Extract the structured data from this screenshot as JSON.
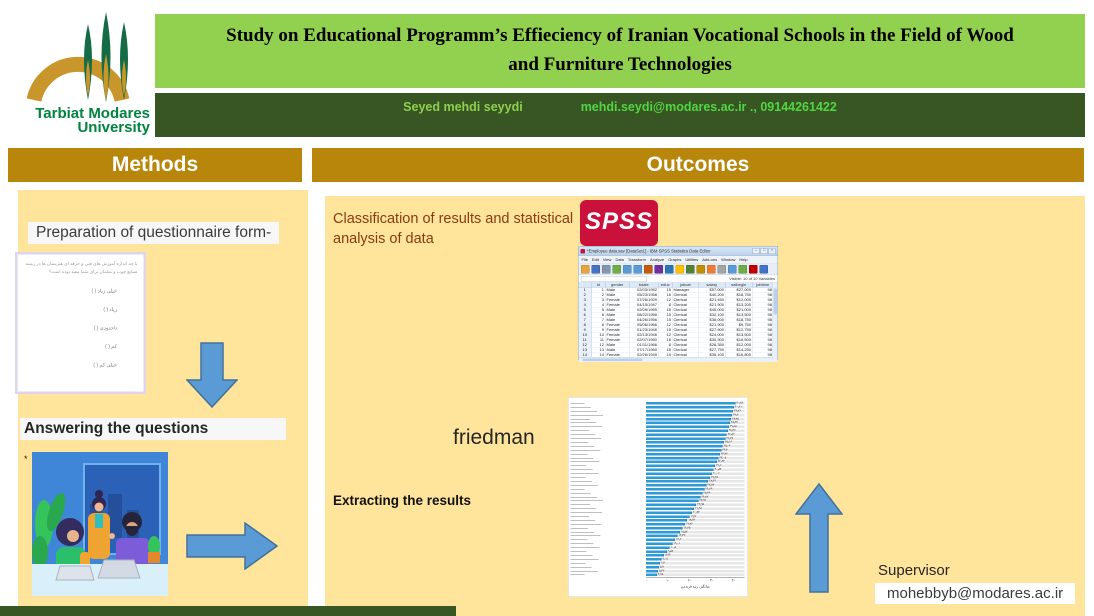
{
  "colors": {
    "title_band_green": "#92D04F",
    "author_band_green": "#375623",
    "section_gold": "#B8860B",
    "panel_yellow": "#FFE49B",
    "arrow_blue": "#5B9BD5",
    "arrow_border": "#41719C",
    "spss_red": "#C9113C",
    "bar_blue": "#2E9BD6"
  },
  "logo": {
    "line1": "Tarbiat Modares",
    "line2": "University"
  },
  "header": {
    "title": "Study on Educational Programm’s Effieciency of Iranian Vocational Schools in the Field of Wood and Furniture Technologies",
    "author": "Seyed mehdi seyydi",
    "email": "mehdi.seydi@modares.ac.ir",
    "separator": ".,",
    "phone": "09144261422"
  },
  "sections": {
    "methods": "Methods",
    "outcomes": "Outcomes"
  },
  "methods": {
    "step1": "Preparation of questionnaire form-",
    "questionnaire": {
      "question": "تا چه اندازه آموزش های فنی و حرفه ای هنرستان ها در زمینه صنایع چوب و مبلمان برای شما مفید بوده است؟",
      "options": [
        "خیلی زیاد",
        "زیاد",
        "تاحدودی",
        "کم",
        "خیلی کم"
      ]
    },
    "step2": "Answering the questions",
    "footnote_marker": "*"
  },
  "outcomes": {
    "step1": "Classification of results and statistical\nanalysis of data",
    "spss_logo_text": "SPSS",
    "friedman_label": "friedman",
    "step2": "Extracting the results",
    "supervisor_label": "Supervisor",
    "supervisor_email": "mohebbyb@modares.ac.ir"
  },
  "spss_window": {
    "title": "*Employee data.sav [DataSet1] - IBM SPSS Statistics Data Editor",
    "menus": [
      "File",
      "Edit",
      "View",
      "Data",
      "Transform",
      "Analyze",
      "Graphs",
      "Utilities",
      "Add-ons",
      "Window",
      "Help"
    ],
    "status": "Visible: 10 of 10 Variables",
    "toolbar_icons": [
      {
        "name": "open-data-icon",
        "color": "#E8A33D"
      },
      {
        "name": "save-icon",
        "color": "#4472C4"
      },
      {
        "name": "print-icon",
        "color": "#8496B0"
      },
      {
        "name": "recall-dialog-icon",
        "color": "#70AD47"
      },
      {
        "name": "undo-icon",
        "color": "#5B9BD5"
      },
      {
        "name": "redo-icon",
        "color": "#5B9BD5"
      },
      {
        "name": "goto-case-icon",
        "color": "#C55A11"
      },
      {
        "name": "goto-variable-icon",
        "color": "#7030A0"
      },
      {
        "name": "variables-icon",
        "color": "#2E75B6"
      },
      {
        "name": "find-icon",
        "color": "#FFC000"
      },
      {
        "name": "insert-cases-icon",
        "color": "#548235"
      },
      {
        "name": "insert-variable-icon",
        "color": "#BF9000"
      },
      {
        "name": "split-file-icon",
        "color": "#ED7D31"
      },
      {
        "name": "weight-cases-icon",
        "color": "#A5A5A5"
      },
      {
        "name": "select-cases-icon",
        "color": "#5B9BD5"
      },
      {
        "name": "value-labels-icon",
        "color": "#70AD47"
      },
      {
        "name": "use-variable-sets-icon",
        "color": "#C00000"
      },
      {
        "name": "spell-check-icon",
        "color": "#4472C4"
      }
    ],
    "columns": [
      "",
      "id",
      "gender",
      "bdate",
      "educ",
      "jobcat",
      "salary",
      "salbegin",
      "jobtime"
    ],
    "rows": [
      [
        "1",
        "1",
        "Male",
        "02/03/1952",
        "15",
        "Manager",
        "$57,000",
        "$27,000",
        "98"
      ],
      [
        "2",
        "2",
        "Male",
        "05/23/1958",
        "16",
        "Clerical",
        "$40,200",
        "$18,750",
        "98"
      ],
      [
        "3",
        "3",
        "Female",
        "07/26/1929",
        "12",
        "Clerical",
        "$21,450",
        "$12,000",
        "98"
      ],
      [
        "4",
        "4",
        "Female",
        "04/15/1947",
        "8",
        "Clerical",
        "$21,900",
        "$13,200",
        "98"
      ],
      [
        "5",
        "5",
        "Male",
        "02/09/1955",
        "15",
        "Clerical",
        "$45,000",
        "$21,000",
        "98"
      ],
      [
        "6",
        "6",
        "Male",
        "08/22/1958",
        "15",
        "Clerical",
        "$32,100",
        "$13,500",
        "98"
      ],
      [
        "7",
        "7",
        "Male",
        "04/26/1956",
        "15",
        "Clerical",
        "$36,000",
        "$18,750",
        "98"
      ],
      [
        "8",
        "8",
        "Female",
        "05/06/1966",
        "12",
        "Clerical",
        "$21,900",
        "$9,750",
        "98"
      ],
      [
        "9",
        "9",
        "Female",
        "01/23/1946",
        "15",
        "Clerical",
        "$27,900",
        "$12,750",
        "98"
      ],
      [
        "10",
        "10",
        "Female",
        "02/13/1946",
        "12",
        "Clerical",
        "$24,000",
        "$13,500",
        "98"
      ],
      [
        "11",
        "11",
        "Female",
        "02/07/1950",
        "16",
        "Clerical",
        "$30,300",
        "$16,500",
        "98"
      ],
      [
        "12",
        "12",
        "Male",
        "01/11/1966",
        "8",
        "Clerical",
        "$28,350",
        "$12,000",
        "98"
      ],
      [
        "13",
        "13",
        "Male",
        "07/17/1960",
        "15",
        "Clerical",
        "$27,750",
        "$14,250",
        "98"
      ],
      [
        "14",
        "14",
        "Female",
        "02/26/1949",
        "15",
        "Clerical",
        "$35,100",
        "$16,800",
        "98"
      ]
    ]
  },
  "chart_data": {
    "type": "bar",
    "orientation": "horizontal",
    "title": "",
    "xlabel": "میانگین رتبه فریدمن",
    "x_ticks": [
      0,
      10,
      20,
      30,
      40
    ],
    "xlim": [
      0,
      45
    ],
    "bar_color": "#2E9BD6",
    "values": [
      40.82,
      40.21,
      39.76,
      39.3,
      38.85,
      38.37,
      37.88,
      37.36,
      36.82,
      36.25,
      35.66,
      35.04,
      34.4,
      33.74,
      33.05,
      32.34,
      31.6,
      30.84,
      30.06,
      29.25,
      28.42,
      27.57,
      26.69,
      25.79,
      24.87,
      23.92,
      22.95,
      21.96,
      20.94,
      19.9,
      18.84,
      17.76,
      16.65,
      15.52,
      14.37,
      13.2,
      12.01,
      10.8,
      9.57,
      8.32,
      7.05,
      6.4,
      5.9,
      5.43,
      4.98
    ],
    "labels_note": "45 Persian questionnaire-item labels, illegible at source resolution",
    "label_placeholder": "ــــــــــــــــــــــــــــــــــــــــ"
  }
}
